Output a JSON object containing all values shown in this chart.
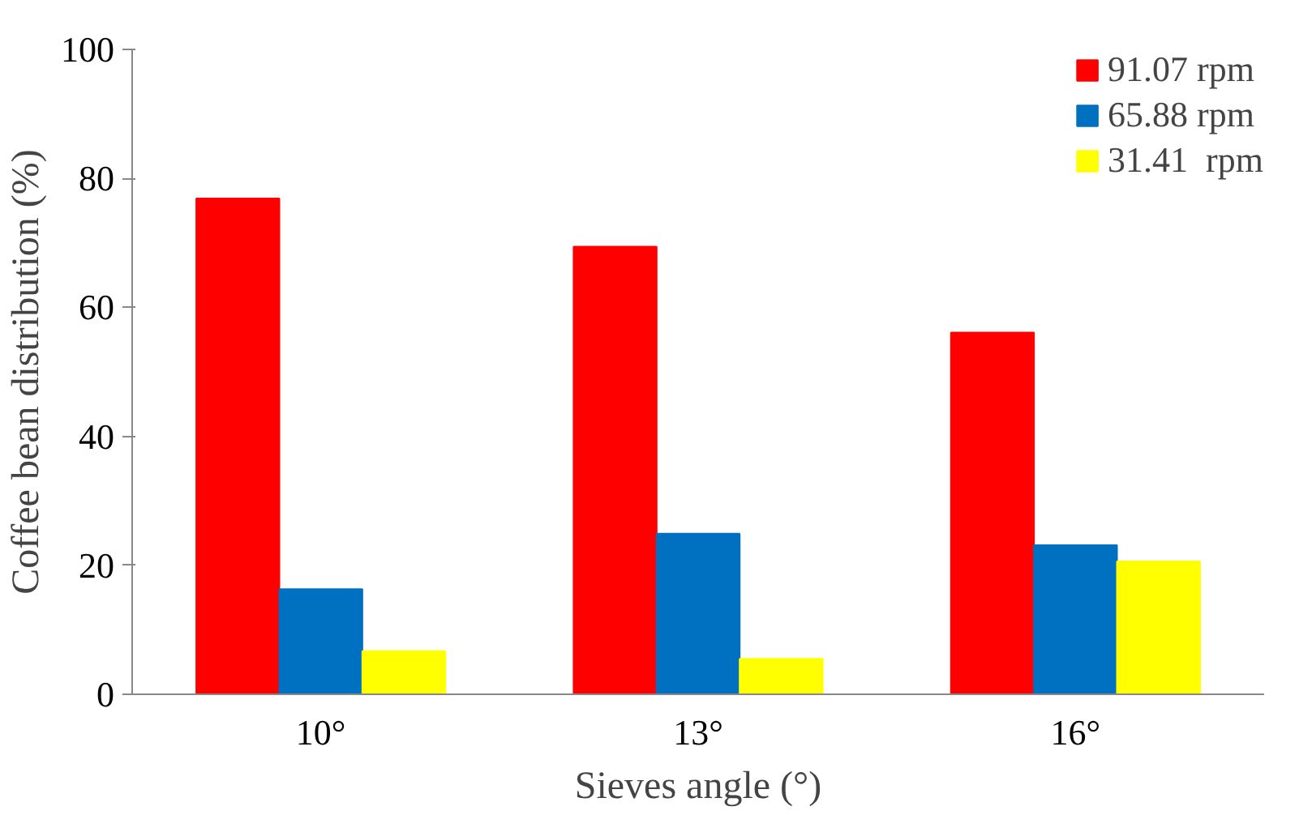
{
  "chart_data": {
    "type": "bar",
    "xlabel": "Sieves angle (°)",
    "ylabel": "Coffee bean distribution (%)",
    "categories": [
      "10°",
      "13°",
      "16°"
    ],
    "series": [
      {
        "name": "91.07 rpm",
        "color": "#ff0000",
        "values": [
          76.9,
          69.4,
          56.1
        ]
      },
      {
        "name": "65.88 rpm",
        "color": "#0070c0",
        "values": [
          16.3,
          24.9,
          23.1
        ]
      },
      {
        "name": "31.41  rpm",
        "color": "#ffff00",
        "values": [
          6.7,
          5.5,
          20.6
        ]
      }
    ],
    "ylim": [
      0,
      100
    ],
    "yticks": [
      0,
      20,
      40,
      60,
      80,
      100
    ],
    "grid": false,
    "legend": "top right"
  }
}
